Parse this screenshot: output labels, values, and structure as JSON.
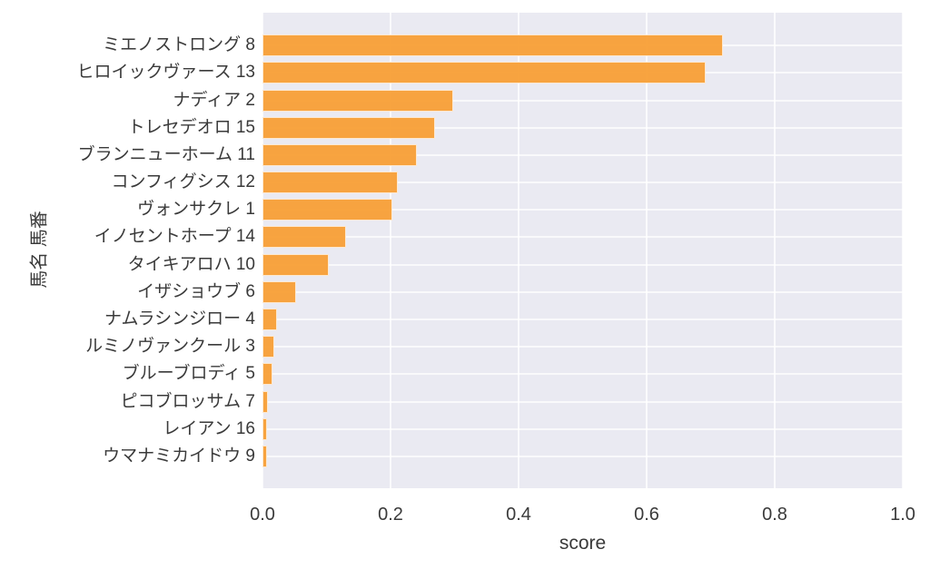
{
  "chart_data": {
    "type": "bar",
    "orientation": "horizontal",
    "xlabel": "score",
    "ylabel": "馬名 馬番",
    "xlim": [
      0,
      1
    ],
    "xtick_labels": [
      "0.0",
      "0.2",
      "0.4",
      "0.6",
      "0.8",
      "1.0"
    ],
    "xtick_values": [
      0.0,
      0.2,
      0.4,
      0.6,
      0.8,
      1.0
    ],
    "grid": "on",
    "legend": "none",
    "categories": [
      "ミエノストロング 8",
      "ヒロイックヴァース 13",
      "ナディア 2",
      "トレセデオロ 15",
      "ブランニューホーム 11",
      "コンフィグシス 12",
      "ヴォンサクレ 1",
      "イノセントホープ 14",
      "タイキアロハ 10",
      "イザショウブ 6",
      "ナムラシンジロー 4",
      "ルミノヴァンクール 3",
      "ブルーブロディ 5",
      "ピコブロッサム 7",
      "レイアン 16",
      "ウマナミカイドウ 9"
    ],
    "values": [
      0.719,
      0.692,
      0.298,
      0.27,
      0.241,
      0.211,
      0.203,
      0.13,
      0.103,
      0.053,
      0.022,
      0.019,
      0.016,
      0.009,
      0.007,
      0.006
    ],
    "colors": {
      "bar": "#f8a03c",
      "plot_background": "#eaeaf2",
      "grid": "#ffffff",
      "text": "#3a3a3a",
      "figure_background": "#ffffff"
    }
  }
}
